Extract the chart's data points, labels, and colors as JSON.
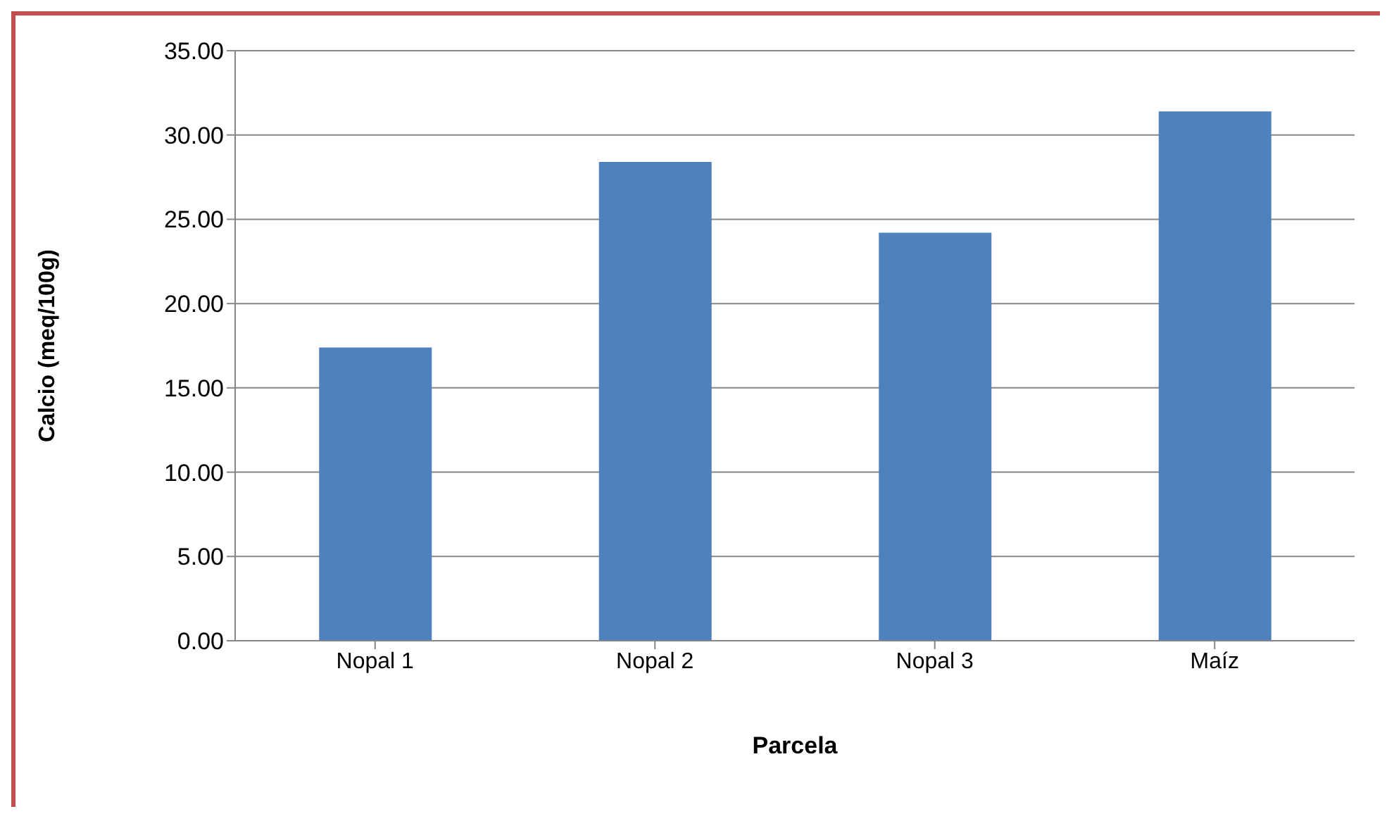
{
  "chart_data": {
    "type": "bar",
    "xlabel": "Parcela",
    "ylabel": "Calcio (meq/100g)",
    "categories": [
      "Nopal 1",
      "Nopal 2",
      "Nopal 3",
      "Maíz"
    ],
    "values": [
      17.4,
      28.4,
      24.2,
      31.4
    ],
    "color": "#4f81bd",
    "ylim": [
      0,
      35
    ],
    "yticks": [
      {
        "value": 0,
        "label": "0.00"
      },
      {
        "value": 5,
        "label": "5.00"
      },
      {
        "value": 10,
        "label": "10.00"
      },
      {
        "value": 15,
        "label": "15.00"
      },
      {
        "value": 20,
        "label": "20.00"
      },
      {
        "value": 25,
        "label": "25.00"
      },
      {
        "value": 30,
        "label": "30.00"
      },
      {
        "value": 35,
        "label": "35.00"
      }
    ],
    "grid": "y",
    "legend": false
  }
}
